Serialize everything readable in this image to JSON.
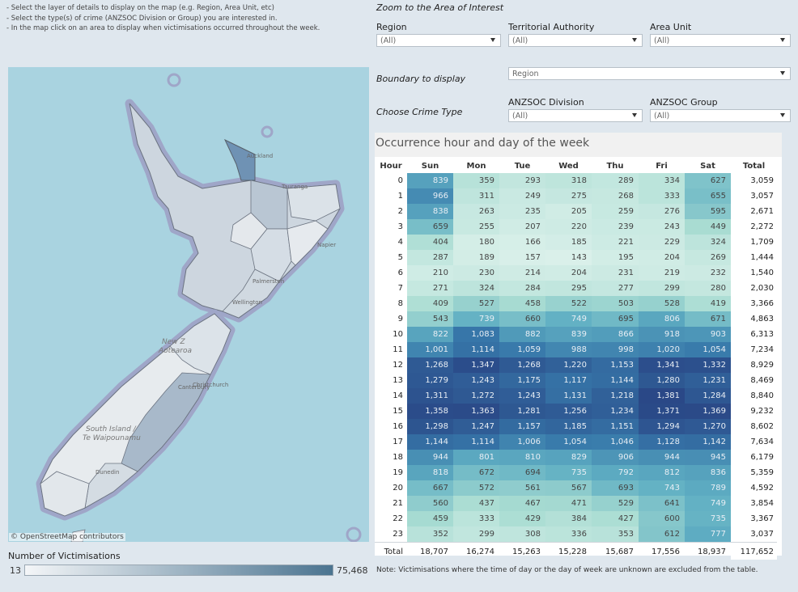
{
  "instructions": [
    "- Select the layer of details to display on the map (e.g. Region, Area Unit, etc)",
    "- Select the type(s) of crime (ANZSOC Division or Group)  you are interested in.",
    "- In the map click on an area to display when victimisations occurred throughout the week."
  ],
  "zoom_title": "Zoom to the Area of Interest",
  "filters": {
    "region": {
      "label": "Region",
      "value": "(All)"
    },
    "territorial_authority": {
      "label": "Territorial Authority",
      "value": "(All)"
    },
    "area_unit": {
      "label": "Area Unit",
      "value": "(All)"
    },
    "boundary": {
      "label": "Boundary to display",
      "value": "Region"
    },
    "crime_type_label": "Choose Crime Type",
    "anzsoc_division": {
      "label": "ANZSOC Division",
      "value": "(All)"
    },
    "anzsoc_group": {
      "label": "ANZSOC Group",
      "value": "(All)"
    }
  },
  "map": {
    "attribution": "© OpenStreetMap contributors",
    "places": [
      "Auckland",
      "Tauranga",
      "Napier",
      "Palmerston",
      "Wellington",
      "Christchurch",
      "Dunedin",
      "South Island /",
      "Te Waipounamu",
      "Canterbury",
      "New Z",
      "Aotearoa"
    ]
  },
  "legend": {
    "title": "Number of Victimisations",
    "min": "13",
    "max": "75,468"
  },
  "heatmap": {
    "title": "Occurrence hour and day of the week",
    "columns": [
      "Hour",
      "Sun",
      "Mon",
      "Tue",
      "Wed",
      "Thu",
      "Fri",
      "Sat",
      "Total"
    ],
    "rows": [
      [
        "0",
        "839",
        "359",
        "293",
        "318",
        "289",
        "334",
        "627",
        "3,059"
      ],
      [
        "1",
        "966",
        "311",
        "249",
        "275",
        "268",
        "333",
        "655",
        "3,057"
      ],
      [
        "2",
        "838",
        "263",
        "235",
        "205",
        "259",
        "276",
        "595",
        "2,671"
      ],
      [
        "3",
        "659",
        "255",
        "207",
        "220",
        "239",
        "243",
        "449",
        "2,272"
      ],
      [
        "4",
        "404",
        "180",
        "166",
        "185",
        "221",
        "229",
        "324",
        "1,709"
      ],
      [
        "5",
        "287",
        "189",
        "157",
        "143",
        "195",
        "204",
        "269",
        "1,444"
      ],
      [
        "6",
        "210",
        "230",
        "214",
        "204",
        "231",
        "219",
        "232",
        "1,540"
      ],
      [
        "7",
        "271",
        "324",
        "284",
        "295",
        "277",
        "299",
        "280",
        "2,030"
      ],
      [
        "8",
        "409",
        "527",
        "458",
        "522",
        "503",
        "528",
        "419",
        "3,366"
      ],
      [
        "9",
        "543",
        "739",
        "660",
        "749",
        "695",
        "806",
        "671",
        "4,863"
      ],
      [
        "10",
        "822",
        "1,083",
        "882",
        "839",
        "866",
        "918",
        "903",
        "6,313"
      ],
      [
        "11",
        "1,001",
        "1,114",
        "1,059",
        "988",
        "998",
        "1,020",
        "1,054",
        "7,234"
      ],
      [
        "12",
        "1,268",
        "1,347",
        "1,268",
        "1,220",
        "1,153",
        "1,341",
        "1,332",
        "8,929"
      ],
      [
        "13",
        "1,279",
        "1,243",
        "1,175",
        "1,117",
        "1,144",
        "1,280",
        "1,231",
        "8,469"
      ],
      [
        "14",
        "1,311",
        "1,272",
        "1,243",
        "1,131",
        "1,218",
        "1,381",
        "1,284",
        "8,840"
      ],
      [
        "15",
        "1,358",
        "1,363",
        "1,281",
        "1,256",
        "1,234",
        "1,371",
        "1,369",
        "9,232"
      ],
      [
        "16",
        "1,298",
        "1,247",
        "1,157",
        "1,185",
        "1,151",
        "1,294",
        "1,270",
        "8,602"
      ],
      [
        "17",
        "1,144",
        "1,114",
        "1,006",
        "1,054",
        "1,046",
        "1,128",
        "1,142",
        "7,634"
      ],
      [
        "18",
        "944",
        "801",
        "810",
        "829",
        "906",
        "944",
        "945",
        "6,179"
      ],
      [
        "19",
        "818",
        "672",
        "694",
        "735",
        "792",
        "812",
        "836",
        "5,359"
      ],
      [
        "20",
        "667",
        "572",
        "561",
        "567",
        "693",
        "743",
        "789",
        "4,592"
      ],
      [
        "21",
        "560",
        "437",
        "467",
        "471",
        "529",
        "641",
        "749",
        "3,854"
      ],
      [
        "22",
        "459",
        "333",
        "429",
        "384",
        "427",
        "600",
        "735",
        "3,367"
      ],
      [
        "23",
        "352",
        "299",
        "308",
        "336",
        "353",
        "612",
        "777",
        "3,037"
      ]
    ],
    "total_row": [
      "Total",
      "18,707",
      "16,274",
      "15,263",
      "15,228",
      "15,687",
      "17,556",
      "18,937",
      "117,652"
    ]
  },
  "note": "Note: Victimisations where the time of day or the day of week are unknown are excluded from the  table."
}
